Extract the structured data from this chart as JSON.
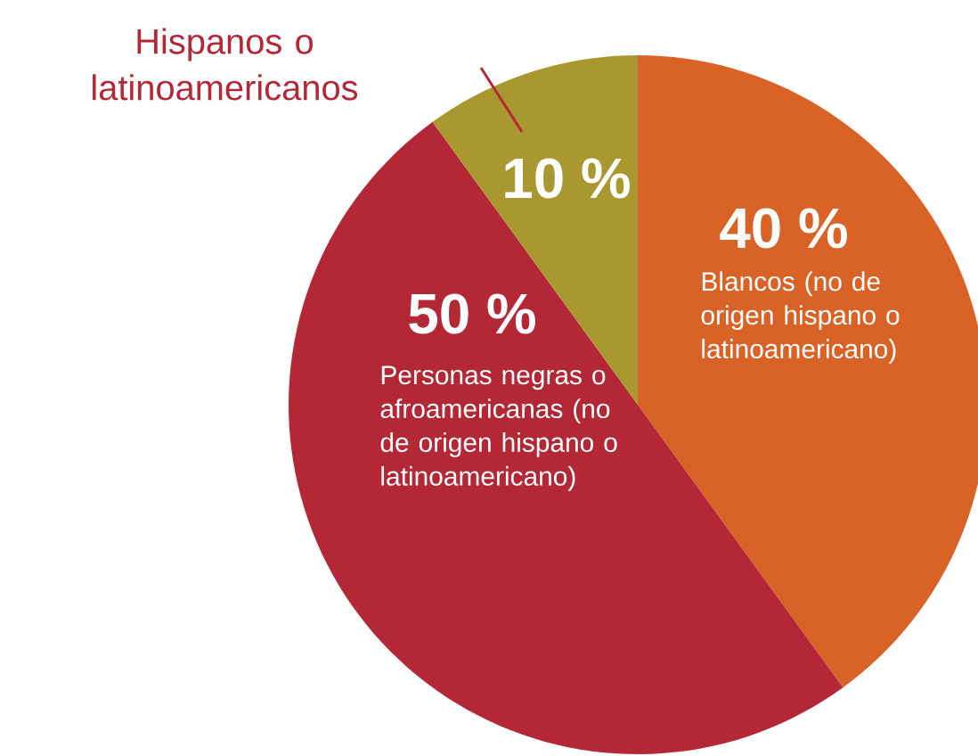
{
  "chart_data": {
    "type": "pie",
    "categories": [
      "Blancos (no de origen hispano o latinoamericano)",
      "Personas negras o afroamericanas (no de origen hispano o latinoamericano)",
      "Hispanos o latinoamericanos"
    ],
    "values": [
      40,
      50,
      10
    ],
    "colors": [
      "#d96327",
      "#b32737",
      "#a8982f"
    ],
    "value_labels": [
      "40 %",
      "50 %",
      "10 %"
    ]
  }
}
